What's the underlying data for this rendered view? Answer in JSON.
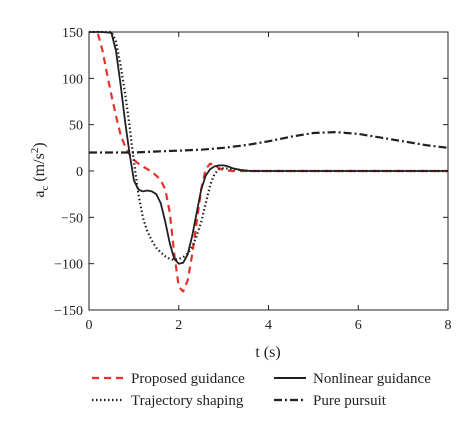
{
  "chart_data": {
    "type": "line",
    "xlabel": "t (s)",
    "ylabel_main": "a",
    "ylabel_sub": "c",
    "ylabel_unit_pre": " (m/s",
    "ylabel_unit_sup": "2",
    "ylabel_unit_post": ")",
    "xlim": [
      0,
      8
    ],
    "ylim": [
      -150,
      150
    ],
    "x_ticks": [
      0,
      2,
      4,
      6,
      8
    ],
    "y_ticks": [
      150,
      100,
      50,
      0,
      -50,
      -100,
      -150
    ],
    "x_tick_labels": [
      "0",
      "2",
      "4",
      "6",
      "8"
    ],
    "y_tick_labels": [
      "150",
      "100",
      "50",
      "0",
      "−50",
      "−100",
      "−150"
    ],
    "grid": false,
    "legend_position": "bottom",
    "series": [
      {
        "name": "Proposed guidance",
        "color": "#e8312a",
        "style": "dashed",
        "x": [
          0.2,
          0.3,
          0.4,
          0.5,
          0.6,
          0.7,
          0.8,
          0.9,
          1.0,
          1.1,
          1.2,
          1.3,
          1.4,
          1.5,
          1.6,
          1.7,
          1.8,
          1.9,
          2.0,
          2.1,
          2.2,
          2.3,
          2.4,
          2.5,
          2.6,
          2.7,
          2.8,
          2.9,
          3.0,
          3.2,
          3.4,
          3.6,
          4.0,
          5.0,
          6.0,
          7.0,
          8.0
        ],
        "y": [
          148,
          130,
          105,
          82,
          60,
          40,
          27,
          18,
          12,
          8,
          5,
          2,
          -1,
          -5,
          -10,
          -20,
          -45,
          -90,
          -125,
          -130,
          -118,
          -90,
          -55,
          -20,
          2,
          8,
          6,
          3,
          1,
          0,
          0,
          0,
          0,
          0,
          0,
          0,
          0
        ]
      },
      {
        "name": "Nonlinear guidance",
        "color": "#231f20",
        "style": "solid",
        "x": [
          0,
          0.3,
          0.5,
          0.6,
          0.7,
          0.8,
          0.9,
          1.0,
          1.1,
          1.2,
          1.3,
          1.4,
          1.5,
          1.6,
          1.7,
          1.8,
          1.9,
          2.0,
          2.1,
          2.2,
          2.3,
          2.4,
          2.5,
          2.6,
          2.7,
          2.8,
          2.9,
          3.0,
          3.1,
          3.2,
          3.4,
          3.6,
          4.0,
          5.0,
          6.0,
          7.0,
          8.0
        ],
        "y": [
          150,
          150,
          149,
          130,
          95,
          55,
          20,
          -10,
          -20,
          -22,
          -21,
          -22,
          -25,
          -35,
          -55,
          -78,
          -95,
          -100,
          -99,
          -90,
          -70,
          -45,
          -20,
          -5,
          2,
          5,
          6,
          6,
          5,
          3,
          1,
          0,
          0,
          0,
          0,
          0,
          0
        ]
      },
      {
        "name": "Trajectory shaping",
        "color": "#231f20",
        "style": "dotted",
        "x": [
          0,
          0.3,
          0.5,
          0.6,
          0.7,
          0.8,
          0.9,
          1.0,
          1.1,
          1.2,
          1.3,
          1.4,
          1.5,
          1.6,
          1.7,
          1.8,
          1.9,
          2.0,
          2.1,
          2.2,
          2.3,
          2.4,
          2.5,
          2.6,
          2.7,
          2.8,
          2.9,
          3.0,
          3.2,
          3.4,
          3.6,
          3.8,
          4.0,
          5.0,
          6.0,
          7.0,
          8.0
        ],
        "y": [
          150,
          150,
          150,
          140,
          115,
          85,
          50,
          10,
          -25,
          -50,
          -65,
          -75,
          -83,
          -88,
          -92,
          -95,
          -96,
          -95,
          -93,
          -89,
          -82,
          -70,
          -55,
          -35,
          -15,
          -3,
          2,
          3,
          2,
          1,
          0,
          0,
          0,
          0,
          0,
          0,
          0
        ]
      },
      {
        "name": "Pure pursuit",
        "color": "#231f20",
        "style": "dashdot",
        "x": [
          0,
          0.5,
          1.0,
          1.5,
          2.0,
          2.5,
          3.0,
          3.5,
          4.0,
          4.5,
          5.0,
          5.5,
          6.0,
          6.5,
          7.0,
          7.5,
          8.0
        ],
        "y": [
          20,
          20,
          20,
          21,
          22,
          23,
          25,
          28,
          32,
          37,
          41,
          42,
          40,
          36,
          32,
          28,
          25
        ]
      }
    ]
  }
}
